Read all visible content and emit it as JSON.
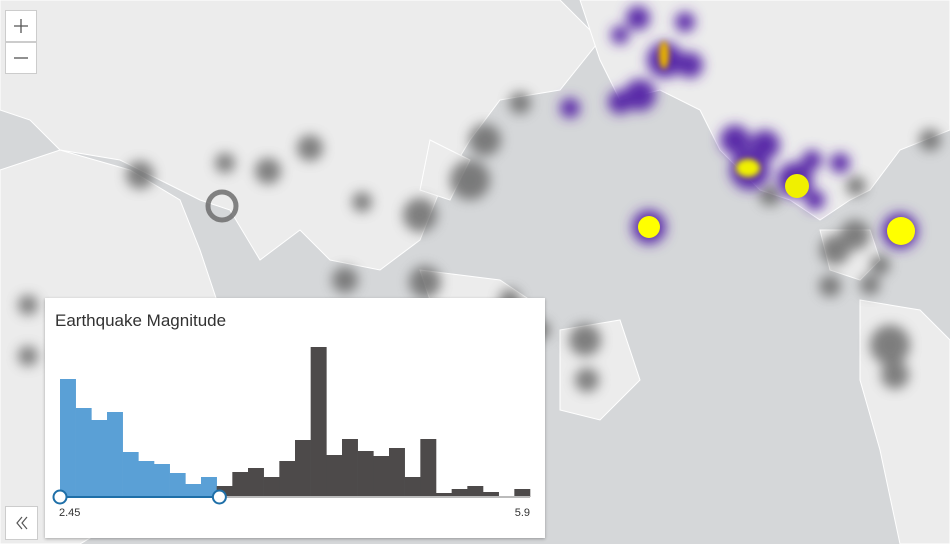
{
  "histogram": {
    "title": "Earthquake Magnitude",
    "range": {
      "min": 2.45,
      "max": 5.9
    },
    "selection": {
      "max": 3.62
    },
    "counts": [
      118,
      89,
      77,
      85,
      45,
      36,
      33,
      24,
      13,
      20,
      11,
      25,
      29,
      20,
      36,
      57,
      150,
      42,
      58,
      46,
      41,
      49,
      20,
      58,
      4,
      8,
      11,
      5,
      0,
      8
    ]
  }
}
